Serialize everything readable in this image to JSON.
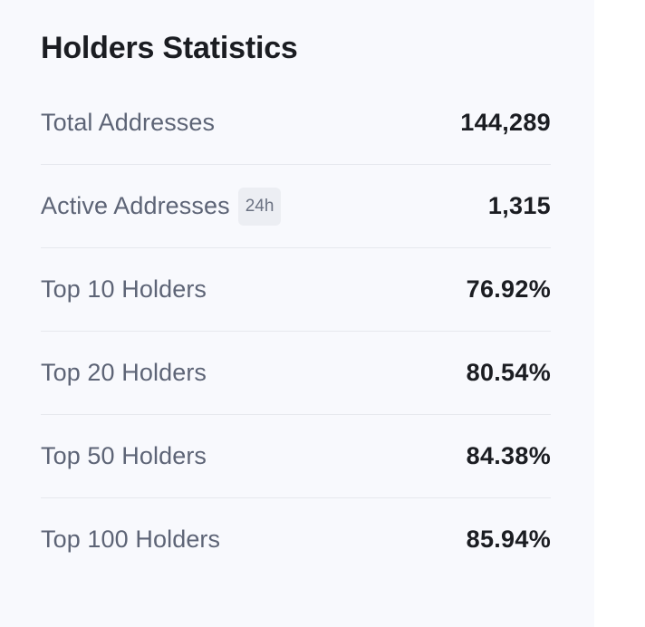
{
  "card": {
    "title": "Holders Statistics",
    "rows": [
      {
        "label": "Total Addresses",
        "value": "144,289"
      },
      {
        "label": "Active Addresses",
        "badge": "24h",
        "value": "1,315"
      },
      {
        "label": "Top 10 Holders",
        "value": "76.92%"
      },
      {
        "label": "Top 20 Holders",
        "value": "80.54%"
      },
      {
        "label": "Top 50 Holders",
        "value": "84.38%"
      },
      {
        "label": "Top 100 Holders",
        "value": "85.94%"
      }
    ]
  }
}
